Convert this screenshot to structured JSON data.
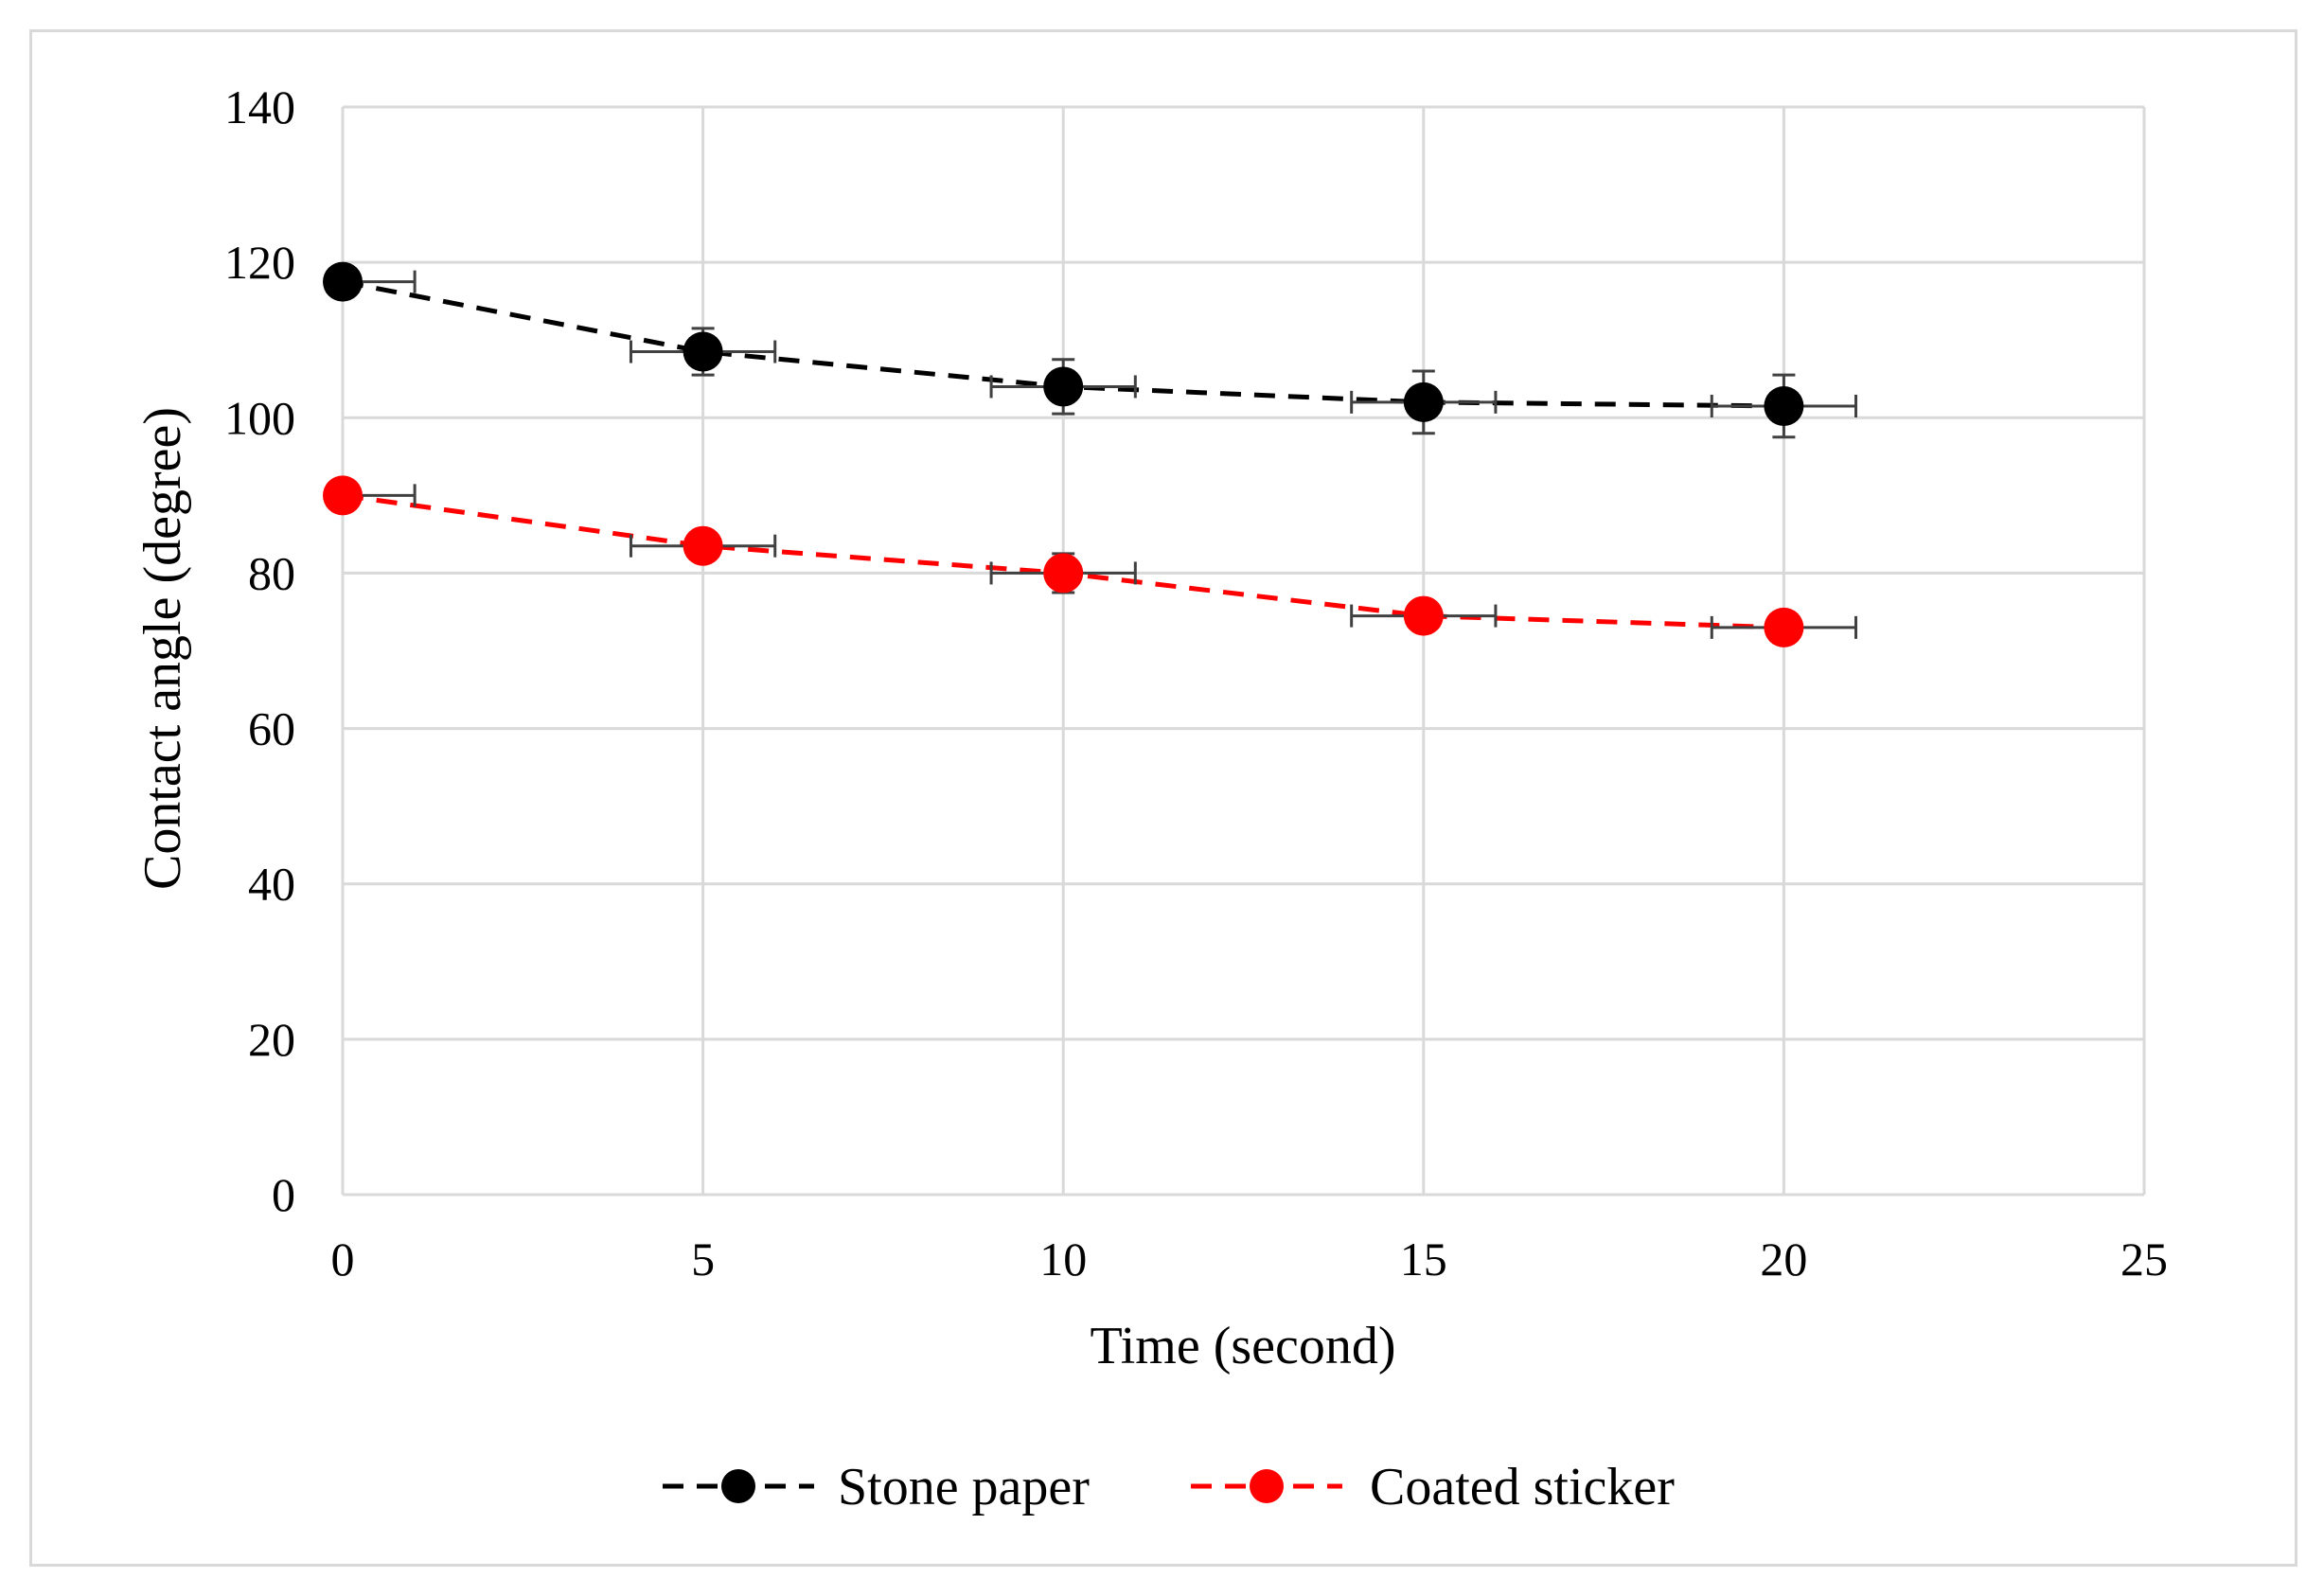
{
  "chart_data": {
    "type": "line",
    "xlabel": "Time (second)",
    "ylabel": "Contact angle (degree)",
    "xlim": [
      0,
      25
    ],
    "ylim": [
      0,
      140
    ],
    "xticks": [
      "0",
      "5",
      "10",
      "15",
      "20",
      "25"
    ],
    "yticks": [
      "0",
      "20",
      "40",
      "60",
      "80",
      "100",
      "120",
      "140"
    ],
    "grid": true,
    "legend_position": "bottom",
    "x_error": 1,
    "series": [
      {
        "name": "Stone paper",
        "color": "#000000",
        "line_style": "dashed",
        "marker": "circle",
        "x": [
          0,
          5,
          10,
          15,
          20
        ],
        "y": [
          117.5,
          108.5,
          104,
          102,
          101.5
        ],
        "y_error": [
          1,
          3,
          3.5,
          4,
          4
        ]
      },
      {
        "name": "Coated sticker",
        "color": "#ff0000",
        "line_style": "dashed",
        "marker": "circle",
        "x": [
          0,
          5,
          10,
          15,
          20
        ],
        "y": [
          90,
          83.5,
          80,
          74.5,
          73
        ],
        "y_error": [
          1,
          1,
          2.5,
          1,
          1
        ]
      }
    ]
  }
}
